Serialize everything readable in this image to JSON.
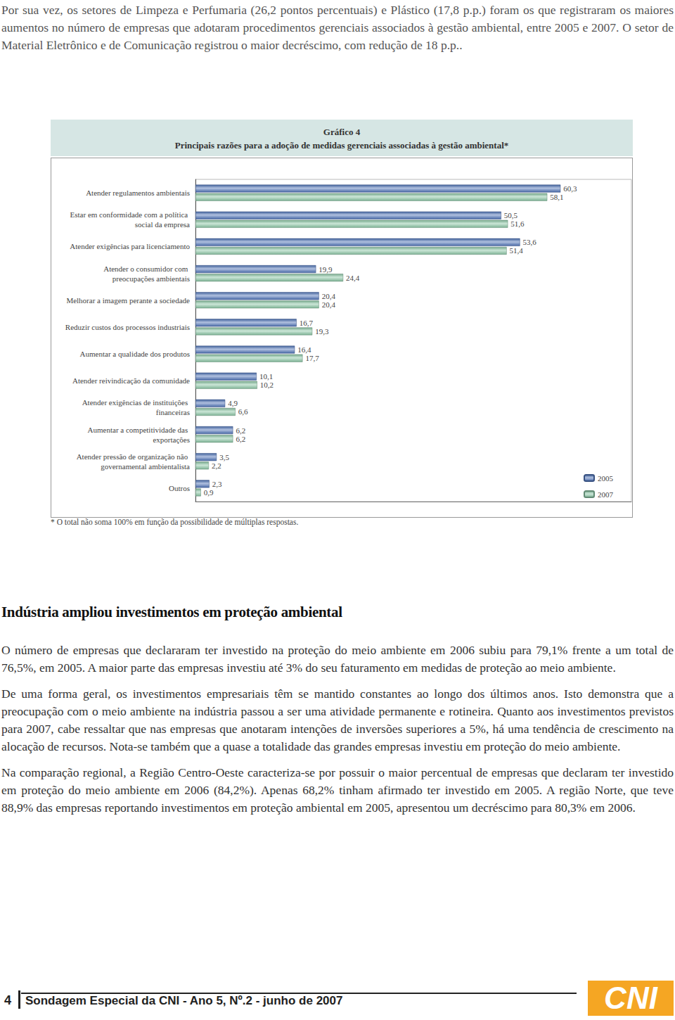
{
  "intro": "Por sua vez, os setores de Limpeza e Perfumaria (26,2 pontos percentuais) e Plástico (17,8 p.p.) foram os que registraram os maiores aumentos no número de empresas que adotaram procedimentos gerenciais associados à gestão ambiental, entre 2005 e 2007. O setor de Material Eletrônico e de Comunicação registrou o maior decréscimo, com redução de 18 p.p..",
  "chart_data": {
    "type": "bar",
    "title": "Gráfico 4",
    "subtitle": "Principais razões para a adoção de medidas gerenciais associadas à gestão ambiental*",
    "orientation": "horizontal",
    "categories": [
      "Atender regulamentos ambientais",
      "Estar em conformidade com a política social da empresa",
      "Atender exigências para licenciamento",
      "Atender o consumidor com preocupações ambientais",
      "Melhorar a imagem perante a sociedade",
      "Reduzir custos dos processos industriais",
      "Aumentar a qualidade dos produtos",
      "Atender reivindicação da comunidade",
      "Atender exigências de instituições financeiras",
      "Aumentar a competitividade das exportações",
      "Atender pressão de organização não governamental ambientalista",
      "Outros"
    ],
    "series": [
      {
        "name": "2005",
        "color": "#4f74b8",
        "values": [
          60.3,
          50.5,
          53.6,
          19.9,
          20.4,
          16.7,
          16.4,
          10.1,
          4.9,
          6.2,
          3.5,
          2.3
        ],
        "value_labels": [
          "60,3",
          "50,5",
          "53,6",
          "19,9",
          "20,4",
          "16,7",
          "16,4",
          "10,1",
          "4,9",
          "6,2",
          "3,5",
          "2,3"
        ]
      },
      {
        "name": "2007",
        "color": "#8cc7a6",
        "values": [
          58.1,
          51.6,
          51.4,
          24.4,
          20.4,
          19.3,
          17.7,
          10.2,
          6.6,
          6.2,
          2.2,
          0.9
        ],
        "value_labels": [
          "58,1",
          "51,6",
          "51,4",
          "24,4",
          "20,4",
          "19,3",
          "17,7",
          "10,2",
          "6,6",
          "6,2",
          "2,2",
          "0,9"
        ]
      }
    ],
    "xlim": [
      0,
      72
    ],
    "tick_labels": false,
    "data_labels": true,
    "legend": "bottom-right",
    "annotations": [
      "* O total não soma 100% em função da possibilidade de múltiplas respostas."
    ]
  },
  "section": {
    "heading": "Indústria ampliou investimentos em proteção ambiental",
    "paragraphs": [
      "O número de empresas que declararam ter investido na proteção do meio ambiente em 2006 subiu para 79,1% frente a um total de 76,5%, em 2005. A maior parte das empresas investiu até 3% do seu faturamento em medidas de proteção ao meio ambiente.",
      "De uma forma geral, os investimentos empresariais têm se mantido constantes ao longo dos últimos anos. Isto demonstra que a preocupação com o meio ambiente na indústria passou a ser uma atividade permanente e rotineira. Quanto aos investimentos previstos para 2007, cabe ressaltar que nas empresas que anotaram intenções de inversões superiores a 5%, há uma tendência de crescimento na alocação de recursos. Nota-se também que a quase a totalidade das grandes empresas investiu em proteção do meio ambiente.",
      "Na comparação regional, a Região Centro-Oeste caracteriza-se por possuir o maior percentual de empresas que declaram ter investido em proteção do meio ambiente em 2006 (84,2%).  Apenas 68,2% tinham afirmado ter investido em 2005. A região Norte, que teve 88,9% das empresas reportando investimentos em proteção ambiental em 2005, apresentou um decréscimo para 80,3% em 2006."
    ]
  },
  "footer": {
    "page": "4",
    "text": "Sondagem Especial da CNI - Ano 5, Nº.2 - junho de 2007",
    "logo": "CNI"
  }
}
